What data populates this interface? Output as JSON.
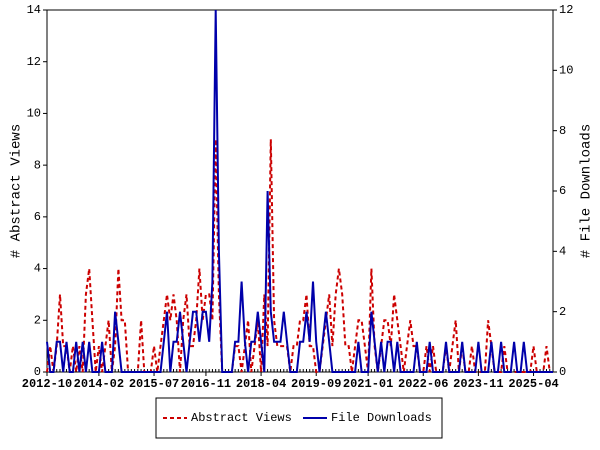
{
  "chart_data": {
    "type": "line",
    "ylabel": "# Abstract Views",
    "y2label": "# File Downloads",
    "x": [
      "2012-10",
      "2012-11",
      "2012-12",
      "2013-01",
      "2013-02",
      "2013-03",
      "2013-04",
      "2013-05",
      "2013-06",
      "2013-07",
      "2013-08",
      "2013-09",
      "2013-10",
      "2013-11",
      "2013-12",
      "2014-01",
      "2014-02",
      "2014-03",
      "2014-04",
      "2014-05",
      "2014-06",
      "2014-07",
      "2014-08",
      "2014-09",
      "2014-10",
      "2014-11",
      "2014-12",
      "2015-01",
      "2015-02",
      "2015-03",
      "2015-04",
      "2015-05",
      "2015-06",
      "2015-07",
      "2015-08",
      "2015-09",
      "2015-10",
      "2015-11",
      "2015-12",
      "2016-01",
      "2016-02",
      "2016-03",
      "2016-04",
      "2016-05",
      "2016-06",
      "2016-07",
      "2016-08",
      "2016-09",
      "2016-10",
      "2016-11",
      "2016-12",
      "2017-01",
      "2017-02",
      "2017-03",
      "2017-04",
      "2017-05",
      "2017-06",
      "2017-07",
      "2017-08",
      "2017-09",
      "2017-10",
      "2017-11",
      "2017-12",
      "2018-01",
      "2018-02",
      "2018-03",
      "2018-04",
      "2018-05",
      "2018-06",
      "2018-07",
      "2018-08",
      "2018-09",
      "2018-10",
      "2018-11",
      "2018-12",
      "2019-01",
      "2019-02",
      "2019-03",
      "2019-04",
      "2019-05",
      "2019-06",
      "2019-07",
      "2019-08",
      "2019-09",
      "2019-10",
      "2019-11",
      "2019-12",
      "2020-01",
      "2020-02",
      "2020-03",
      "2020-04",
      "2020-05",
      "2020-06",
      "2020-07",
      "2020-08",
      "2020-09",
      "2020-10",
      "2020-11",
      "2020-12",
      "2021-01",
      "2021-02",
      "2021-03",
      "2021-04",
      "2021-05",
      "2021-06",
      "2021-07",
      "2021-08",
      "2021-09",
      "2021-10",
      "2021-11",
      "2021-12",
      "2022-01",
      "2022-02",
      "2022-03",
      "2022-04",
      "2022-05",
      "2022-06",
      "2022-07",
      "2022-08",
      "2022-09",
      "2022-10",
      "2022-11",
      "2022-12",
      "2023-01",
      "2023-02",
      "2023-03",
      "2023-04",
      "2023-05",
      "2023-06",
      "2023-07",
      "2023-08",
      "2023-09",
      "2023-10",
      "2023-11",
      "2023-12",
      "2024-01",
      "2024-02",
      "2024-03",
      "2024-04",
      "2024-05",
      "2024-06",
      "2024-07",
      "2024-08",
      "2024-09",
      "2024-10",
      "2024-11",
      "2024-12",
      "2025-01",
      "2025-02",
      "2025-03",
      "2025-04",
      "2025-05",
      "2025-06",
      "2025-07",
      "2025-08",
      "2025-09",
      "2025-10"
    ],
    "series": [
      {
        "name": "Abstract Views",
        "color": "#cc0000",
        "dash": true,
        "axis": "y",
        "values": [
          0,
          1,
          0,
          1,
          3,
          1,
          1,
          0,
          1,
          0,
          1,
          0,
          3,
          4,
          2,
          0,
          1,
          0,
          1,
          2,
          0,
          1,
          4,
          2,
          2,
          0,
          0,
          0,
          0,
          2,
          0,
          0,
          0,
          1,
          0,
          1,
          2,
          3,
          2,
          3,
          2,
          0,
          2,
          3,
          1,
          1,
          2,
          4,
          2,
          3,
          3,
          2,
          9,
          3,
          0,
          0,
          0,
          0,
          1,
          1,
          0,
          1,
          2,
          0,
          1,
          2,
          0,
          3,
          1,
          9,
          2,
          1,
          1,
          1,
          1,
          0,
          1,
          1,
          2,
          2,
          3,
          1,
          1,
          0,
          0,
          1,
          2,
          3,
          1,
          3,
          4,
          3,
          1,
          1,
          0,
          1,
          2,
          2,
          1,
          0,
          4,
          1,
          0,
          1,
          2,
          2,
          1,
          3,
          2,
          1,
          0,
          1,
          2,
          1,
          1,
          0,
          0,
          1,
          0,
          1,
          0,
          0,
          0,
          1,
          0,
          1,
          2,
          0,
          1,
          0,
          0,
          1,
          0,
          0,
          0,
          0,
          2,
          1,
          0,
          0,
          0,
          1,
          0,
          0,
          0,
          0,
          0,
          0,
          0,
          0,
          1,
          0,
          0,
          0,
          1,
          0,
          0
        ]
      },
      {
        "name": "File Downloads",
        "color": "#0000aa",
        "dash": false,
        "axis": "y2",
        "values": [
          1,
          0,
          0,
          1,
          1,
          0,
          1,
          0,
          0,
          1,
          0,
          1,
          0,
          1,
          0,
          0,
          0,
          1,
          0,
          0,
          0,
          2,
          1,
          0,
          0,
          0,
          0,
          0,
          0,
          0,
          0,
          0,
          0,
          0,
          0,
          0,
          1,
          2,
          0,
          1,
          1,
          2,
          1,
          0,
          1,
          2,
          2,
          1,
          2,
          2,
          1,
          3,
          12,
          4,
          0,
          0,
          0,
          0,
          1,
          1,
          3,
          1,
          0,
          1,
          1,
          2,
          1,
          0,
          6,
          2,
          1,
          1,
          1,
          2,
          1,
          0,
          0,
          0,
          1,
          1,
          2,
          1,
          3,
          1,
          0,
          1,
          2,
          1,
          0,
          0,
          0,
          0,
          0,
          0,
          0,
          0,
          1,
          0,
          0,
          0,
          2,
          1,
          0,
          1,
          0,
          1,
          1,
          0,
          1,
          0,
          0,
          0,
          0,
          0,
          1,
          0,
          0,
          0,
          1,
          0,
          0,
          0,
          0,
          1,
          0,
          0,
          0,
          0,
          1,
          0,
          0,
          0,
          0,
          1,
          0,
          0,
          0,
          1,
          0,
          0,
          1,
          0,
          0,
          0,
          1,
          0,
          0,
          1,
          0,
          0,
          0,
          0,
          0,
          0,
          0,
          0,
          0
        ]
      }
    ],
    "xlim": [
      "2012-10",
      "2025-10"
    ],
    "xticks": [
      "2012-10",
      "2014-02",
      "2015-07",
      "2016-11",
      "2018-04",
      "2019-09",
      "2021-01",
      "2022-06",
      "2023-11",
      "2025-04"
    ],
    "ylim": [
      0,
      14
    ],
    "yticks": [
      0,
      2,
      4,
      6,
      8,
      10,
      12,
      14
    ],
    "y2lim": [
      0,
      12
    ],
    "y2ticks": [
      0,
      2,
      4,
      6,
      8,
      10,
      12
    ],
    "legend": "bottom"
  }
}
